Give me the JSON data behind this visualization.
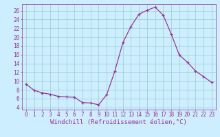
{
  "hours": [
    0,
    1,
    2,
    3,
    4,
    5,
    6,
    7,
    8,
    9,
    10,
    11,
    12,
    13,
    14,
    15,
    16,
    17,
    18,
    19,
    20,
    21,
    22,
    23
  ],
  "values": [
    9.3,
    7.9,
    7.3,
    7.0,
    6.5,
    6.4,
    6.3,
    5.1,
    5.0,
    4.6,
    6.9,
    12.2,
    18.7,
    22.4,
    25.2,
    26.1,
    26.8,
    25.0,
    20.7,
    15.9,
    14.3,
    12.3,
    11.0,
    9.7
  ],
  "line_color": "#993399",
  "marker": "+",
  "marker_size": 3,
  "bg_color": "#cceeff",
  "grid_color": "#99cccc",
  "xlabel": "Windchill (Refroidissement éolien,°C)",
  "xlabel_color": "#993399",
  "tick_color": "#993399",
  "ylim": [
    3.5,
    27.5
  ],
  "yticks": [
    4,
    6,
    8,
    10,
    12,
    14,
    16,
    18,
    20,
    22,
    24,
    26
  ],
  "xticks": [
    0,
    1,
    2,
    3,
    4,
    5,
    6,
    7,
    8,
    9,
    10,
    11,
    12,
    13,
    14,
    15,
    16,
    17,
    18,
    19,
    20,
    21,
    22,
    23
  ],
  "xlim": [
    -0.5,
    23.5
  ],
  "tick_fontsize": 5.5,
  "xlabel_fontsize": 6.5,
  "linewidth": 0.9,
  "markeredgewidth": 0.9
}
